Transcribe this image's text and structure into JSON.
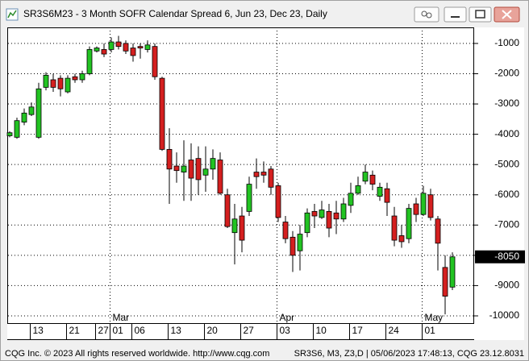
{
  "window_title": "SR3S6M23 - 3 Month SOFR Calendar Spread 6, Jun 23, Dec 23, Daily",
  "footer": {
    "left": "CQG Inc. © 2023 All rights reserved worldwide. http://www.cqg.com",
    "right": "SR3S6, M3, Z3,D | 05/06/2023 17:48:13, CQG 23.12.8031"
  },
  "chart_data": {
    "type": "candlestick",
    "categories": [
      null,
      null,
      null,
      "13",
      null,
      null,
      null,
      null,
      "21",
      null,
      null,
      null,
      "27",
      null,
      "01",
      null,
      null,
      "06",
      null,
      null,
      null,
      null,
      "13",
      null,
      null,
      null,
      null,
      "20",
      null,
      null,
      null,
      null,
      "27",
      null,
      null,
      null,
      null,
      "03",
      null,
      null,
      null,
      null,
      "10",
      null,
      null,
      null,
      null,
      "17",
      null,
      null,
      null,
      null,
      "24",
      null,
      null,
      null,
      null,
      "01",
      null,
      null,
      null,
      null
    ],
    "month_labels": [
      null,
      null,
      null,
      null,
      null,
      null,
      null,
      null,
      null,
      null,
      null,
      null,
      null,
      null,
      "Mar",
      null,
      null,
      null,
      null,
      null,
      null,
      null,
      null,
      null,
      null,
      null,
      null,
      null,
      null,
      null,
      null,
      null,
      null,
      null,
      null,
      null,
      null,
      "Apr",
      null,
      null,
      null,
      null,
      null,
      null,
      null,
      null,
      null,
      null,
      null,
      null,
      null,
      null,
      null,
      null,
      null,
      null,
      null,
      "May",
      null,
      null,
      null,
      null
    ],
    "open": [
      -4050,
      -4100,
      -3600,
      -3350,
      -4100,
      -2450,
      -2200,
      -2150,
      -2600,
      -2100,
      -2200,
      -2000,
      -1250,
      -1200,
      -1200,
      -950,
      -1000,
      -1150,
      -1100,
      -1200,
      -1100,
      -2150,
      -4500,
      -5050,
      -5250,
      -4850,
      -4800,
      -5350,
      -5150,
      -4850,
      -6000,
      -7250,
      -6700,
      -6550,
      -5250,
      -5250,
      -5150,
      -5700,
      -6900,
      -7400,
      -7850,
      -7250,
      -6550,
      -6750,
      -6550,
      -6600,
      -6800,
      -6350,
      -5950,
      -5550,
      -5350,
      -6050,
      -5800,
      -6700,
      -7350,
      -7450,
      -6300,
      -6650,
      -6000,
      -6800,
      -8400,
      -9050
    ],
    "high": [
      -3900,
      -3450,
      -3150,
      -2950,
      -2300,
      -1950,
      -2000,
      -2050,
      -2050,
      -2000,
      -1900,
      -1100,
      -1100,
      -1000,
      -800,
      -750,
      -900,
      -1000,
      -1000,
      -900,
      -1000,
      -2100,
      -3800,
      -4600,
      -4200,
      -4300,
      -4400,
      -4400,
      -4500,
      -4600,
      -5800,
      -6300,
      -6400,
      -5400,
      -4800,
      -4900,
      -5050,
      -5600,
      -6700,
      -7200,
      -7000,
      -6450,
      -6300,
      -6200,
      -6300,
      -6200,
      -6100,
      -5600,
      -5400,
      -5000,
      -5200,
      -5600,
      -5600,
      -6400,
      -7000,
      -6300,
      -6100,
      -5700,
      -5800,
      -6700,
      -8000,
      -7900
    ],
    "low": [
      -4100,
      -4150,
      -3700,
      -3400,
      -4150,
      -2550,
      -2600,
      -2750,
      -2650,
      -2300,
      -2300,
      -2050,
      -1300,
      -1450,
      -1300,
      -1200,
      -1350,
      -1600,
      -1500,
      -1300,
      -2200,
      -4550,
      -6300,
      -5600,
      -6200,
      -6200,
      -6000,
      -5900,
      -5500,
      -6000,
      -7100,
      -8300,
      -7900,
      -6700,
      -5800,
      -5600,
      -6000,
      -6900,
      -7600,
      -8550,
      -8500,
      -7400,
      -7100,
      -6800,
      -7400,
      -7300,
      -6900,
      -6600,
      -6000,
      -5650,
      -5850,
      -6200,
      -6700,
      -7700,
      -7750,
      -7600,
      -6900,
      -6700,
      -6850,
      -8500,
      -9950,
      -9150
    ],
    "close": [
      -3950,
      -3550,
      -3300,
      -3100,
      -2500,
      -2050,
      -2450,
      -2500,
      -2150,
      -2200,
      -2000,
      -1200,
      -1150,
      -1350,
      -950,
      -1100,
      -1250,
      -1400,
      -1150,
      -1050,
      -2100,
      -4500,
      -5150,
      -5200,
      -5050,
      -5450,
      -5500,
      -5150,
      -4800,
      -5950,
      -7050,
      -6800,
      -7500,
      -5650,
      -5400,
      -5350,
      -5750,
      -6750,
      -7450,
      -8000,
      -7300,
      -6600,
      -6700,
      -6500,
      -7100,
      -6800,
      -6300,
      -5950,
      -5700,
      -5250,
      -5650,
      -5750,
      -6250,
      -7500,
      -7550,
      -6450,
      -6650,
      -5950,
      -6750,
      -7600,
      -9350,
      -8050
    ],
    "up_color": "#22c322",
    "down_color": "#d41f1f",
    "ylim": [
      -10240,
      -470
    ],
    "yticks": [
      -1000,
      -2000,
      -3000,
      -4000,
      -5000,
      -6000,
      -7000,
      -8000,
      -9000,
      -10000
    ],
    "grid": true,
    "last_price": -8050
  }
}
